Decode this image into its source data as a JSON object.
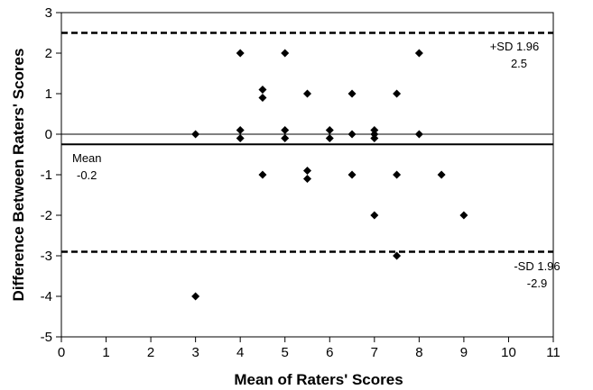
{
  "chart_data": {
    "type": "scatter",
    "title": "",
    "xlabel": "Mean of Raters' Scores",
    "ylabel": "Difference Between Raters' Scores",
    "xlim": [
      0,
      11
    ],
    "ylim": [
      -5,
      3
    ],
    "xticks": [
      "0",
      "1",
      "2",
      "3",
      "4",
      "5",
      "6",
      "7",
      "8",
      "9",
      "10",
      "11"
    ],
    "yticks": [
      "3",
      "2",
      "1",
      "0",
      "-1",
      "-2",
      "-3",
      "-4",
      "-5"
    ],
    "grid": false,
    "points": [
      {
        "x": 3,
        "y": 0
      },
      {
        "x": 3,
        "y": -4
      },
      {
        "x": 4,
        "y": 2
      },
      {
        "x": 4,
        "y": 0.1
      },
      {
        "x": 4,
        "y": -0.1
      },
      {
        "x": 4.5,
        "y": 1.1
      },
      {
        "x": 4.5,
        "y": 0.9
      },
      {
        "x": 4.5,
        "y": -1
      },
      {
        "x": 5,
        "y": 2
      },
      {
        "x": 5,
        "y": 0.1
      },
      {
        "x": 5,
        "y": -0.1
      },
      {
        "x": 5.5,
        "y": 1
      },
      {
        "x": 5.5,
        "y": -0.9
      },
      {
        "x": 5.5,
        "y": -1.1
      },
      {
        "x": 6,
        "y": 0.1
      },
      {
        "x": 6,
        "y": -0.1
      },
      {
        "x": 6.5,
        "y": 1
      },
      {
        "x": 6.5,
        "y": 0
      },
      {
        "x": 6.5,
        "y": -1
      },
      {
        "x": 7,
        "y": 0.1
      },
      {
        "x": 7,
        "y": 0
      },
      {
        "x": 7,
        "y": -0.1
      },
      {
        "x": 7,
        "y": -2
      },
      {
        "x": 7.5,
        "y": 1
      },
      {
        "x": 7.5,
        "y": -1
      },
      {
        "x": 7.5,
        "y": -3
      },
      {
        "x": 8,
        "y": 2
      },
      {
        "x": 8,
        "y": 0
      },
      {
        "x": 8.5,
        "y": -1
      },
      {
        "x": 9,
        "y": -2
      }
    ],
    "zero_line": 0,
    "mean_line": {
      "value": -0.25,
      "label_title": "Mean",
      "label_value": "-0.2"
    },
    "upper_limit": {
      "value": 2.5,
      "label_title": "+SD 1.96",
      "label_value": "2.5"
    },
    "lower_limit": {
      "value": -2.9,
      "label_title": "-SD 1.96",
      "label_value": "-2.9"
    },
    "marker": "diamond",
    "colors": {
      "marker": "#000000",
      "lines": "#000000",
      "background": "#ffffff"
    }
  }
}
